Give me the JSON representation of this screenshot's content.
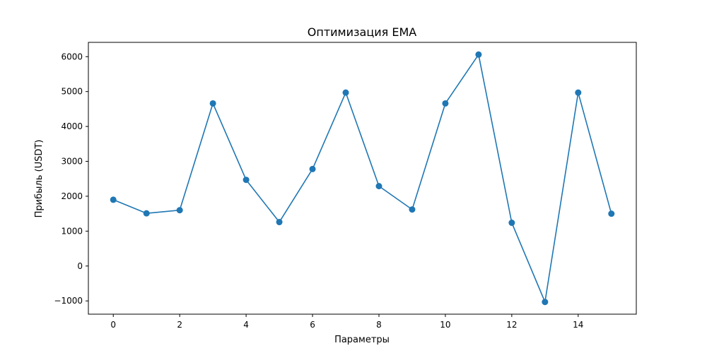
{
  "chart_data": {
    "type": "line",
    "title": "Оптимизация EMA",
    "xlabel": "Параметры",
    "ylabel": "Прибыль (USDT)",
    "x": [
      0,
      1,
      2,
      3,
      4,
      5,
      6,
      7,
      8,
      9,
      10,
      11,
      12,
      13,
      14,
      15
    ],
    "series": [
      {
        "color": "#1f77b4",
        "values": [
          1900,
          1510,
          1600,
          4660,
          2470,
          1260,
          2780,
          4970,
          2290,
          1620,
          4660,
          6060,
          1240,
          -1030,
          4970,
          1500
        ]
      }
    ],
    "xlim": [
      -0.75,
      15.75
    ],
    "ylim": [
      -1380,
      6410
    ],
    "xticks": [
      0,
      2,
      4,
      6,
      8,
      10,
      12,
      14
    ],
    "xtick_labels": [
      "0",
      "2",
      "4",
      "6",
      "8",
      "10",
      "12",
      "14"
    ],
    "yticks": [
      -1000,
      0,
      1000,
      2000,
      3000,
      4000,
      5000,
      6000
    ],
    "ytick_labels": [
      "−1000",
      "0",
      "1000",
      "2000",
      "3000",
      "4000",
      "5000",
      "6000"
    ],
    "grid": false,
    "markers": true
  }
}
